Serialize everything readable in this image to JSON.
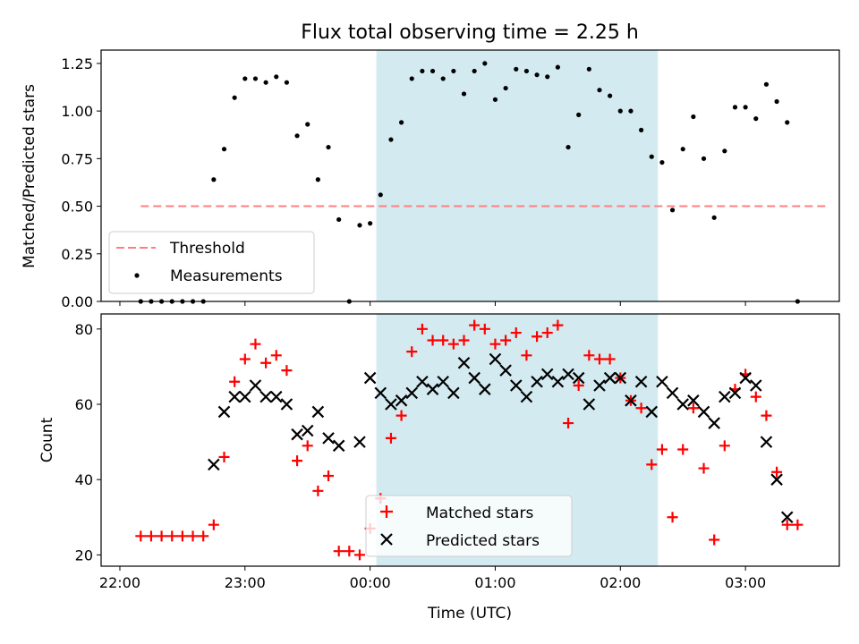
{
  "chart_data": {
    "type": "scatter",
    "title": "Flux total observing time = 2.25 h",
    "xlabel": "Time (UTC)",
    "x_ticks": [
      "22:00",
      "23:00",
      "00:00",
      "01:00",
      "02:00",
      "03:00"
    ],
    "xlim": [
      "21:51",
      "03:45"
    ],
    "shaded_span": {
      "start": "00:03",
      "end": "02:18",
      "color": "#d3eaf0"
    },
    "panels": [
      {
        "ylabel": "Matched/Predicted stars",
        "ylim": [
          0,
          1.32
        ],
        "y_ticks": [
          "0.00",
          "0.25",
          "0.50",
          "0.75",
          "1.00",
          "1.25"
        ],
        "legend_position": "lower-left",
        "series": [
          {
            "name": "Threshold",
            "kind": "line",
            "style": "dashed",
            "color": "#ff7f7f",
            "x": [
              "22:10",
              "03:40"
            ],
            "y": [
              0.5,
              0.5
            ]
          },
          {
            "name": "Measurements",
            "kind": "points",
            "marker": "dot",
            "color": "#000000",
            "x": [
              "22:10",
              "22:15",
              "22:20",
              "22:25",
              "22:30",
              "22:35",
              "22:40",
              "22:45",
              "22:50",
              "22:55",
              "23:00",
              "23:05",
              "23:10",
              "23:15",
              "23:20",
              "23:25",
              "23:30",
              "23:35",
              "23:40",
              "23:45",
              "23:50",
              "23:55",
              "00:00",
              "00:05",
              "00:10",
              "00:15",
              "00:20",
              "00:25",
              "00:30",
              "00:35",
              "00:40",
              "00:45",
              "00:50",
              "00:55",
              "01:00",
              "01:05",
              "01:10",
              "01:15",
              "01:20",
              "01:25",
              "01:30",
              "01:35",
              "01:40",
              "01:45",
              "01:50",
              "01:55",
              "02:00",
              "02:05",
              "02:10",
              "02:15",
              "02:20",
              "02:25",
              "02:30",
              "02:35",
              "02:40",
              "02:45",
              "02:50",
              "02:55",
              "03:00",
              "03:05",
              "03:10",
              "03:15",
              "03:20",
              "03:25"
            ],
            "y": [
              0.0,
              0.0,
              0.0,
              0.0,
              0.0,
              0.0,
              0.0,
              0.64,
              0.8,
              1.07,
              1.17,
              1.17,
              1.15,
              1.18,
              1.15,
              0.87,
              0.93,
              0.64,
              0.81,
              0.43,
              0.0,
              0.4,
              0.41,
              0.56,
              0.85,
              0.94,
              1.17,
              1.21,
              1.21,
              1.17,
              1.21,
              1.09,
              1.21,
              1.25,
              1.06,
              1.12,
              1.22,
              1.21,
              1.19,
              1.18,
              1.23,
              0.81,
              0.98,
              1.22,
              1.11,
              1.08,
              1.0,
              1.0,
              0.9,
              0.76,
              0.73,
              0.48,
              0.8,
              0.97,
              0.75,
              0.44,
              0.79,
              1.02,
              1.02,
              0.96,
              1.14,
              1.05,
              0.94,
              0.0
            ]
          }
        ]
      },
      {
        "ylabel": "Count",
        "ylim": [
          17,
          84
        ],
        "y_ticks": [
          "20",
          "40",
          "60",
          "80"
        ],
        "legend_position": "lower-center",
        "series": [
          {
            "name": "Matched stars",
            "kind": "points",
            "marker": "plus",
            "color": "#ff0000",
            "x": [
              "22:10",
              "22:15",
              "22:20",
              "22:25",
              "22:30",
              "22:35",
              "22:40",
              "22:45",
              "22:50",
              "22:55",
              "23:00",
              "23:05",
              "23:10",
              "23:15",
              "23:20",
              "23:25",
              "23:30",
              "23:35",
              "23:40",
              "23:45",
              "23:50",
              "23:55",
              "00:00",
              "00:05",
              "00:10",
              "00:15",
              "00:20",
              "00:25",
              "00:30",
              "00:35",
              "00:40",
              "00:45",
              "00:50",
              "00:55",
              "01:00",
              "01:05",
              "01:10",
              "01:15",
              "01:20",
              "01:25",
              "01:30",
              "01:35",
              "01:40",
              "01:45",
              "01:50",
              "01:55",
              "02:00",
              "02:05",
              "02:10",
              "02:15",
              "02:20",
              "02:25",
              "02:30",
              "02:35",
              "02:40",
              "02:45",
              "02:50",
              "02:55",
              "03:00",
              "03:05",
              "03:10",
              "03:15",
              "03:20",
              "03:25"
            ],
            "y": [
              25,
              25,
              25,
              25,
              25,
              25,
              25,
              28,
              46,
              66,
              72,
              76,
              71,
              73,
              69,
              45,
              49,
              37,
              41,
              21,
              21,
              20,
              27,
              35,
              51,
              57,
              74,
              80,
              77,
              77,
              76,
              77,
              81,
              80,
              76,
              77,
              79,
              73,
              78,
              79,
              81,
              55,
              65,
              73,
              72,
              72,
              67,
              61,
              59,
              44,
              48,
              30,
              48,
              59,
              43,
              24,
              49,
              64,
              68,
              62,
              57,
              42,
              28,
              28
            ]
          },
          {
            "name": "Predicted stars",
            "kind": "points",
            "marker": "x",
            "color": "#000000",
            "x": [
              "22:45",
              "22:50",
              "22:55",
              "23:00",
              "23:05",
              "23:10",
              "23:15",
              "23:20",
              "23:25",
              "23:30",
              "23:35",
              "23:40",
              "23:45",
              "23:55",
              "00:00",
              "00:05",
              "00:10",
              "00:15",
              "00:20",
              "00:25",
              "00:30",
              "00:35",
              "00:40",
              "00:45",
              "00:50",
              "00:55",
              "01:00",
              "01:05",
              "01:10",
              "01:15",
              "01:20",
              "01:25",
              "01:30",
              "01:35",
              "01:40",
              "01:45",
              "01:50",
              "01:55",
              "02:00",
              "02:05",
              "02:10",
              "02:15",
              "02:20",
              "02:25",
              "02:30",
              "02:35",
              "02:40",
              "02:45",
              "02:50",
              "02:55",
              "03:00",
              "03:05",
              "03:10",
              "03:15",
              "03:20"
            ],
            "y": [
              44,
              58,
              62,
              62,
              65,
              62,
              62,
              60,
              52,
              53,
              58,
              51,
              49,
              50,
              67,
              63,
              60,
              61,
              63,
              66,
              64,
              66,
              63,
              71,
              67,
              64,
              72,
              69,
              65,
              62,
              66,
              68,
              66,
              68,
              67,
              60,
              65,
              67,
              67,
              61,
              66,
              58,
              66,
              63,
              60,
              61,
              58,
              55,
              62,
              63,
              67,
              65,
              50,
              40,
              30
            ]
          }
        ]
      }
    ]
  }
}
